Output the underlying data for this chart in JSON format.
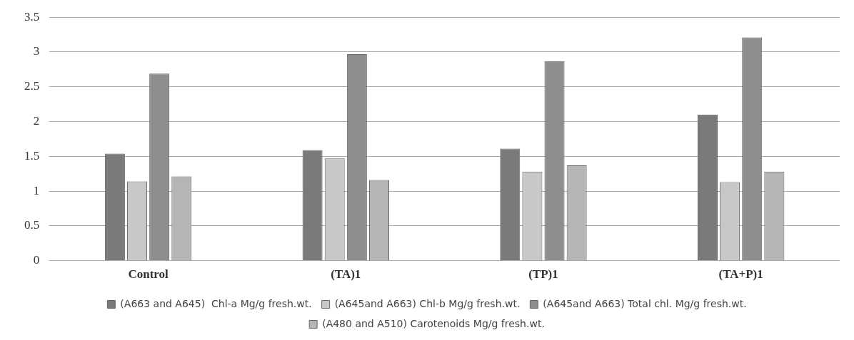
{
  "chart_data": {
    "type": "bar",
    "categories": [
      "Control",
      "(TA)1",
      "(TP)1",
      "(TA+P)1"
    ],
    "series": [
      {
        "name": "(A663 and A645)  Chl-a Mg/g fresh.wt.",
        "color": "#7a7a7a",
        "values": [
          1.54,
          1.59,
          1.61,
          2.1
        ]
      },
      {
        "name": "(A645and A663) Chl-b Mg/g fresh.wt.",
        "color": "#c8c8c8",
        "values": [
          1.14,
          1.47,
          1.28,
          1.13
        ]
      },
      {
        "name": "(A645and A663) Total chl. Mg/g fresh.wt.",
        "color": "#8e8e8e",
        "values": [
          2.69,
          2.97,
          2.87,
          3.21
        ]
      },
      {
        "name": "(A480 and A510) Carotenoids Mg/g fresh.wt.",
        "color": "#b5b5b5",
        "values": [
          1.21,
          1.16,
          1.37,
          1.28
        ]
      }
    ],
    "ylim": [
      0,
      3.5
    ],
    "yticks": [
      0,
      0.5,
      1,
      1.5,
      2,
      2.5,
      3,
      3.5
    ],
    "grid": "y",
    "legend": "bottom"
  }
}
